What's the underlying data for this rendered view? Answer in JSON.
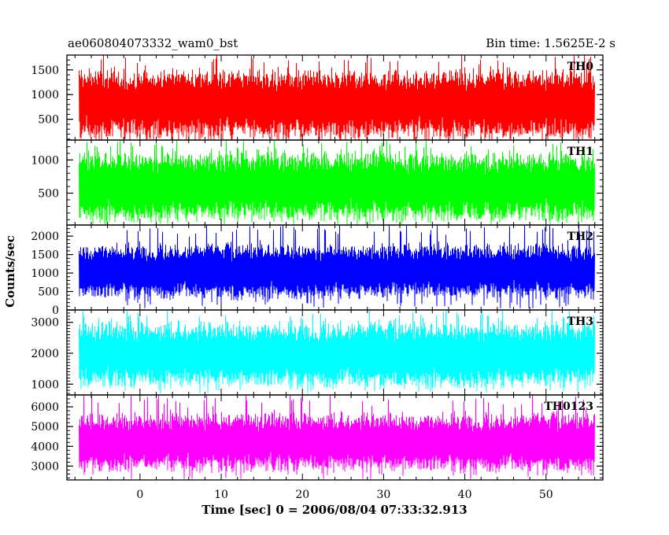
{
  "header": {
    "title": "ae060804073332_wam0_bst",
    "bin_time": "Bin time: 1.5625E-2 s"
  },
  "chart_data": {
    "type": "line",
    "xlabel": "Time [sec] 0 = 2006/08/04 07:33:32.913",
    "ylabel": "Counts/sec",
    "xlim": [
      -9,
      57
    ],
    "x_ticks": [
      0,
      10,
      20,
      30,
      40,
      50
    ],
    "x_tick_labels": [
      "0",
      "10",
      "20",
      "30",
      "40",
      "50"
    ],
    "data_x_range": [
      -7.5,
      56
    ],
    "panels": [
      {
        "series": "TH0",
        "color": "#ff0000",
        "ylim": [
          80,
          1800
        ],
        "yticks": [
          500,
          1000,
          1500
        ],
        "ytick_labels": [
          "500",
          "1000",
          "1500"
        ],
        "mean": 800,
        "typical_low": 200,
        "typical_high": 1550,
        "min": 80,
        "max": 1800
      },
      {
        "series": "TH1",
        "color": "#00ff00",
        "ylim": [
          20,
          1300
        ],
        "yticks": [
          500,
          1000
        ],
        "ytick_labels": [
          "500",
          "1000"
        ],
        "mean": 600,
        "typical_low": 150,
        "typical_high": 1150,
        "min": 30,
        "max": 1300
      },
      {
        "series": "TH2",
        "color": "#0000ff",
        "ylim": [
          0,
          2300
        ],
        "yticks": [
          0,
          500,
          1000,
          1500,
          2000
        ],
        "ytick_labels": [
          "0",
          "500",
          "1000",
          "1500",
          "2000"
        ],
        "mean": 1050,
        "typical_low": 400,
        "typical_high": 1800,
        "min": 50,
        "max": 2300
      },
      {
        "series": "TH3",
        "color": "#00ffff",
        "ylim": [
          650,
          3400
        ],
        "yticks": [
          1000,
          2000,
          3000
        ],
        "ytick_labels": [
          "1000",
          "2000",
          "3000"
        ],
        "mean": 1950,
        "typical_low": 1000,
        "typical_high": 3000,
        "min": 700,
        "max": 3400
      },
      {
        "series": "TH0123",
        "color": "#ff00ff",
        "ylim": [
          2300,
          6600
        ],
        "yticks": [
          3000,
          4000,
          5000,
          6000
        ],
        "ytick_labels": [
          "3000",
          "4000",
          "5000",
          "6000"
        ],
        "mean": 4200,
        "typical_low": 3000,
        "typical_high": 5800,
        "min": 2350,
        "max": 6600
      }
    ]
  }
}
